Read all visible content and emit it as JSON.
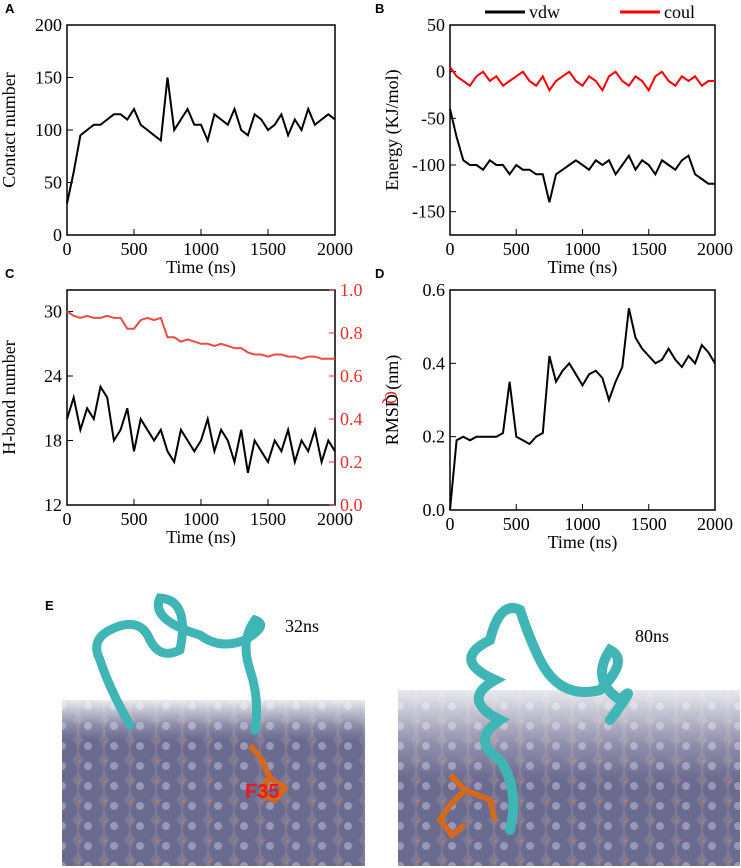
{
  "chart_data": [
    {
      "type": "line",
      "panel": "A",
      "xlabel": "Time (ns)",
      "ylabel": "Contact number",
      "x": [
        0,
        50,
        100,
        150,
        200,
        250,
        300,
        350,
        400,
        450,
        500,
        550,
        600,
        650,
        700,
        750,
        800,
        850,
        900,
        950,
        1000,
        1050,
        1100,
        1150,
        1200,
        1250,
        1300,
        1350,
        1400,
        1450,
        1500,
        1550,
        1600,
        1650,
        1700,
        1750,
        1800,
        1850,
        1900,
        1950,
        2000
      ],
      "xlim": [
        0,
        2000
      ],
      "xticks": [
        0,
        500,
        1000,
        1500,
        2000
      ],
      "ylim": [
        0,
        200
      ],
      "yticks": [
        0,
        50,
        100,
        150,
        200
      ],
      "series": [
        {
          "color": "#000000",
          "values": [
            30,
            60,
            95,
            100,
            105,
            105,
            110,
            115,
            115,
            110,
            120,
            105,
            100,
            95,
            90,
            150,
            100,
            110,
            120,
            105,
            105,
            90,
            115,
            110,
            105,
            120,
            100,
            95,
            115,
            110,
            100,
            105,
            115,
            95,
            110,
            100,
            120,
            105,
            110,
            115,
            110
          ]
        }
      ]
    },
    {
      "type": "line",
      "panel": "B",
      "xlabel": "Time (ns)",
      "ylabel": "Energy (KJ/mol)",
      "x": [
        0,
        50,
        100,
        150,
        200,
        250,
        300,
        350,
        400,
        450,
        500,
        550,
        600,
        650,
        700,
        750,
        800,
        850,
        900,
        950,
        1000,
        1050,
        1100,
        1150,
        1200,
        1250,
        1300,
        1350,
        1400,
        1450,
        1500,
        1550,
        1600,
        1650,
        1700,
        1750,
        1800,
        1850,
        1900,
        1950,
        2000
      ],
      "xlim": [
        0,
        2000
      ],
      "xticks": [
        0,
        500,
        1000,
        1500,
        2000
      ],
      "ylim": [
        -175,
        50
      ],
      "yticks": [
        -150,
        -100,
        -50,
        0,
        50
      ],
      "legend": "top",
      "series": [
        {
          "name": "vdw",
          "color": "#000000",
          "values": [
            -40,
            -70,
            -95,
            -100,
            -100,
            -105,
            -95,
            -100,
            -100,
            -110,
            -100,
            -105,
            -105,
            -110,
            -110,
            -140,
            -110,
            -105,
            -100,
            -95,
            -100,
            -105,
            -95,
            -100,
            -95,
            -110,
            -100,
            -90,
            -105,
            -95,
            -100,
            -110,
            -95,
            -100,
            -105,
            -95,
            -90,
            -110,
            -115,
            -120,
            -120
          ]
        },
        {
          "name": "coul",
          "color": "#ff0000",
          "values": [
            5,
            -5,
            -10,
            -15,
            -5,
            0,
            -10,
            -5,
            -15,
            -10,
            -5,
            0,
            -10,
            -15,
            -5,
            -20,
            -10,
            -5,
            0,
            -10,
            -15,
            -5,
            -10,
            -20,
            -5,
            0,
            -10,
            -15,
            -5,
            -10,
            -20,
            -5,
            0,
            -10,
            -15,
            -5,
            -10,
            -5,
            -15,
            -10,
            -10
          ]
        }
      ]
    },
    {
      "type": "line",
      "panel": "C",
      "xlabel": "Time (ns)",
      "ylabel": "H-bond number",
      "y2label": "Q",
      "y2color": "#e8312f",
      "x": [
        0,
        50,
        100,
        150,
        200,
        250,
        300,
        350,
        400,
        450,
        500,
        550,
        600,
        650,
        700,
        750,
        800,
        850,
        900,
        950,
        1000,
        1050,
        1100,
        1150,
        1200,
        1250,
        1300,
        1350,
        1400,
        1450,
        1500,
        1550,
        1600,
        1650,
        1700,
        1750,
        1800,
        1850,
        1900,
        1950,
        2000
      ],
      "xlim": [
        0,
        2000
      ],
      "xticks": [
        0,
        500,
        1000,
        1500,
        2000
      ],
      "ylim": [
        12,
        32
      ],
      "yticks": [
        12,
        18,
        24,
        30
      ],
      "y2lim": [
        0,
        1
      ],
      "y2ticks": [
        {
          "value": 0,
          "label": "0.0"
        },
        0.2,
        0.4,
        0.6,
        0.8,
        {
          "value": 1,
          "label": "1.0"
        }
      ],
      "series": [
        {
          "color": "#000000",
          "values": [
            20,
            22,
            19,
            21,
            20,
            23,
            22,
            18,
            19,
            21,
            17,
            20,
            19,
            18,
            19,
            17,
            16,
            19,
            18,
            17,
            18,
            20,
            17,
            19,
            18,
            16,
            19,
            15,
            18,
            17,
            16,
            18,
            17,
            19,
            16,
            18,
            17,
            19,
            16,
            18,
            17
          ]
        },
        {
          "color": "#f04a43",
          "axis": "y2",
          "values": [
            0.9,
            0.88,
            0.87,
            0.88,
            0.87,
            0.87,
            0.88,
            0.87,
            0.87,
            0.82,
            0.82,
            0.86,
            0.87,
            0.86,
            0.87,
            0.78,
            0.78,
            0.76,
            0.77,
            0.76,
            0.75,
            0.75,
            0.74,
            0.75,
            0.74,
            0.73,
            0.73,
            0.71,
            0.7,
            0.7,
            0.69,
            0.7,
            0.7,
            0.69,
            0.69,
            0.68,
            0.69,
            0.69,
            0.68,
            0.68,
            0.68
          ]
        }
      ]
    },
    {
      "type": "line",
      "panel": "D",
      "xlabel": "Time (ns)",
      "ylabel": "RMSD (nm)",
      "x": [
        0,
        50,
        100,
        150,
        200,
        250,
        300,
        350,
        400,
        450,
        500,
        550,
        600,
        650,
        700,
        750,
        800,
        850,
        900,
        950,
        1000,
        1050,
        1100,
        1150,
        1200,
        1250,
        1300,
        1350,
        1400,
        1450,
        1500,
        1550,
        1600,
        1650,
        1700,
        1750,
        1800,
        1850,
        1900,
        1950,
        2000
      ],
      "xlim": [
        0,
        2000
      ],
      "xticks": [
        0,
        500,
        1000,
        1500,
        2000
      ],
      "ylim": [
        0,
        0.6
      ],
      "yticks": [
        {
          "value": 0,
          "label": "0.0"
        },
        0.2,
        0.4,
        0.6
      ],
      "series": [
        {
          "color": "#000000",
          "values": [
            0,
            0.19,
            0.2,
            0.19,
            0.2,
            0.2,
            0.2,
            0.2,
            0.21,
            0.35,
            0.2,
            0.19,
            0.18,
            0.2,
            0.21,
            0.42,
            0.35,
            0.38,
            0.4,
            0.37,
            0.34,
            0.37,
            0.38,
            0.36,
            0.3,
            0.35,
            0.39,
            0.55,
            0.47,
            0.44,
            0.42,
            0.4,
            0.41,
            0.44,
            0.41,
            0.39,
            0.42,
            0.4,
            0.45,
            0.43,
            0.4
          ]
        }
      ]
    }
  ],
  "figure_e": {
    "panel": "E",
    "snapshots": [
      {
        "time": "32ns",
        "residue": "F35"
      },
      {
        "time": "80ns"
      }
    ]
  }
}
